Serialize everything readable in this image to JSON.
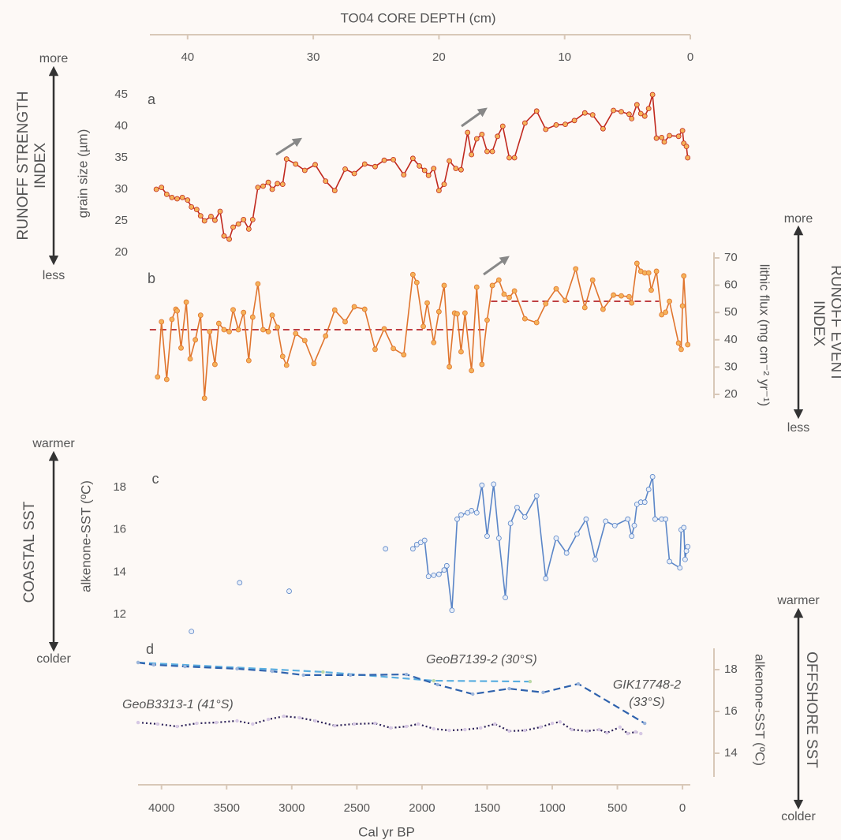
{
  "top_axis": {
    "label": "TO04 CORE DEPTH (cm)",
    "xlim": [
      43,
      0
    ],
    "xticks": [
      40,
      30,
      20,
      10,
      0
    ]
  },
  "bottom_axis": {
    "label": "Cal yr BP",
    "xlim": [
      4180,
      -60
    ],
    "xticks": [
      4000,
      3500,
      3000,
      2500,
      2000,
      1500,
      1000,
      500,
      0
    ]
  },
  "indices": [
    {
      "title": [
        "RUNOFF STRENGTH",
        "INDEX"
      ],
      "top": "more",
      "bottom": "less"
    },
    {
      "title": [
        "RUNOFF EVENT",
        "INDEX"
      ],
      "top": "more",
      "bottom": "less"
    },
    {
      "title": [
        "COASTAL SST"
      ],
      "top": "warmer",
      "bottom": "colder"
    },
    {
      "title": [
        "OFFSHORE SST"
      ],
      "top": "warmer",
      "bottom": "colder"
    }
  ],
  "chart_data": [
    {
      "type": "line",
      "label": "a",
      "ylabel": "grain size (µm)",
      "axis_side": "left",
      "ylim": [
        20,
        45
      ],
      "yticks": [
        20,
        25,
        30,
        35,
        40,
        45
      ],
      "color": "#c0281e",
      "marker_color": "#f5b25a",
      "x": [
        4040,
        4000,
        3960,
        3920,
        3880,
        3840,
        3800,
        3770,
        3730,
        3700,
        3670,
        3620,
        3590,
        3550,
        3520,
        3480,
        3450,
        3410,
        3370,
        3330,
        3300,
        3260,
        3220,
        3180,
        3150,
        3110,
        3070,
        3040,
        2970,
        2900,
        2820,
        2740,
        2670,
        2590,
        2520,
        2440,
        2360,
        2290,
        2220,
        2140,
        2070,
        2020,
        1980,
        1950,
        1910,
        1870,
        1830,
        1790,
        1740,
        1700,
        1650,
        1620,
        1580,
        1540,
        1500,
        1460,
        1420,
        1380,
        1330,
        1290,
        1210,
        1120,
        1050,
        970,
        900,
        830,
        750,
        690,
        610,
        530,
        470,
        410,
        390,
        350,
        320,
        290,
        260,
        230,
        200,
        160,
        140,
        100,
        30,
        0,
        -10,
        -30,
        -40
      ],
      "values": [
        30,
        30.3,
        29.2,
        28.7,
        28.5,
        28.7,
        28.3,
        27.2,
        26.8,
        25.8,
        25,
        25.7,
        25.1,
        26.5,
        22.6,
        22.1,
        24,
        24.5,
        25.2,
        23.7,
        25.2,
        30.3,
        30.5,
        31.1,
        30,
        30.9,
        30.8,
        34.8,
        34,
        33,
        33.9,
        31.3,
        29.8,
        33.2,
        32.5,
        34,
        33.6,
        34.6,
        34.7,
        32.3,
        34.9,
        33.7,
        33,
        32.2,
        33.3,
        29.8,
        30.8,
        34.5,
        33.3,
        33.1,
        39,
        35.5,
        38,
        38.7,
        36,
        36,
        38.4,
        40,
        35,
        35,
        40.5,
        42.4,
        39.5,
        40.2,
        40.3,
        40.9,
        42.1,
        41.8,
        39.6,
        42.5,
        42.3,
        41.9,
        41.2,
        43.4,
        42,
        41.6,
        42.8,
        45,
        38.1,
        38.2,
        37.5,
        38.5,
        38.4,
        39.3,
        37.3,
        36.8,
        35
      ]
    },
    {
      "type": "line",
      "label": "b",
      "ylabel": "lithic flux (mg cm⁻² yr⁻¹)",
      "axis_side": "right",
      "ylim": [
        20,
        70
      ],
      "yticks": [
        20,
        30,
        40,
        50,
        60,
        70
      ],
      "color": "#e0752e",
      "marker_color": "#f5b25a",
      "x": [
        4030,
        4000,
        3960,
        3920,
        3890,
        3880,
        3850,
        3810,
        3780,
        3740,
        3700,
        3670,
        3630,
        3590,
        3560,
        3520,
        3480,
        3450,
        3410,
        3370,
        3330,
        3300,
        3260,
        3220,
        3180,
        3150,
        3110,
        3070,
        3040,
        2970,
        2900,
        2830,
        2740,
        2670,
        2590,
        2520,
        2440,
        2360,
        2290,
        2220,
        2140,
        2070,
        2040,
        1990,
        1960,
        1910,
        1870,
        1830,
        1790,
        1750,
        1730,
        1700,
        1670,
        1620,
        1580,
        1540,
        1500,
        1460,
        1410,
        1370,
        1330,
        1290,
        1210,
        1120,
        1050,
        970,
        900,
        820,
        750,
        690,
        610,
        530,
        470,
        410,
        390,
        350,
        320,
        290,
        260,
        240,
        200,
        160,
        130,
        100,
        30,
        10,
        0,
        -10,
        -40
      ],
      "values": [
        26.4,
        46.6,
        25.5,
        47.5,
        51.2,
        50.6,
        37,
        53.8,
        33,
        40,
        49,
        18.6,
        43,
        31,
        46,
        43.7,
        43,
        51,
        43.7,
        50,
        32.4,
        48.3,
        60.5,
        43.7,
        43,
        49,
        44.6,
        33.9,
        30.7,
        42.3,
        39.7,
        31.3,
        41.4,
        50.9,
        46.6,
        52.1,
        51.2,
        36.5,
        44,
        36.8,
        34.5,
        63.9,
        61,
        44.9,
        53.5,
        39,
        50.3,
        59.9,
        30.1,
        49.8,
        49.5,
        35.6,
        49.8,
        28.7,
        59.3,
        31,
        47.2,
        59.9,
        61.9,
        56.7,
        55.5,
        57.9,
        47.7,
        46.3,
        53.2,
        58.7,
        54.4,
        66,
        51.8,
        61.9,
        51.2,
        56.4,
        56.1,
        55.8,
        53.5,
        68,
        65.1,
        64.5,
        64.5,
        58.2,
        65.1,
        49.2,
        50.1,
        54.1,
        38.8,
        36.5,
        52.4,
        63.4,
        38.2
      ],
      "reference_lines": [
        {
          "value": 43.7,
          "x": [
            4090,
            1520
          ],
          "color": "#b8262a"
        },
        {
          "value": 54.1,
          "x": [
            1470,
            180
          ],
          "color": "#b8262a"
        }
      ]
    },
    {
      "type": "line",
      "label": "c",
      "ylabel": "alkenone-SST (ºC)",
      "axis_side": "left",
      "ylim": [
        11,
        19
      ],
      "yticks": [
        12,
        14,
        16,
        18
      ],
      "series": [
        {
          "line": false,
          "color": "#5b86c8",
          "marker_color": "#e8eef8",
          "x": [
            3770,
            3400,
            3020,
            2280
          ],
          "values": [
            11.2,
            13.5,
            13.1,
            15.1
          ]
        },
        {
          "line": true,
          "color": "#5b86c8",
          "marker_color": "#e8eef8",
          "x": [
            2070,
            2040,
            2010,
            1980,
            1950,
            1910,
            1870,
            1830,
            1810,
            1770,
            1730,
            1700,
            1650,
            1620,
            1580,
            1540,
            1500,
            1450,
            1410,
            1360,
            1320,
            1270,
            1210,
            1120,
            1050,
            970,
            890,
            810,
            740,
            670,
            590,
            520,
            420,
            390,
            370,
            350,
            320,
            290,
            260,
            230,
            210,
            160,
            130,
            100,
            20,
            10,
            -10,
            -20,
            -30,
            -40
          ],
          "values": [
            15.1,
            15.3,
            15.4,
            15.5,
            13.8,
            13.85,
            13.9,
            14.1,
            14.3,
            12.2,
            16.5,
            16.7,
            16.8,
            16.9,
            16.8,
            18.1,
            15.7,
            18.15,
            15.6,
            12.8,
            16.3,
            17.05,
            16.6,
            17.6,
            13.7,
            15.6,
            14.9,
            15.8,
            16.5,
            14.6,
            16.4,
            16.2,
            16.5,
            15.7,
            16.2,
            17.2,
            17.3,
            17.3,
            17.9,
            18.5,
            16.5,
            16.5,
            16.5,
            14.5,
            14.2,
            16,
            16.1,
            14.6,
            15,
            15.2
          ]
        }
      ]
    },
    {
      "type": "line",
      "label": "d",
      "ylabel": "alkenone-SST (ºC)",
      "axis_side": "right",
      "ylim": [
        13,
        19
      ],
      "yticks": [
        14,
        16,
        18
      ],
      "series": [
        {
          "name": "GeoB7139-2 (30°S)",
          "dash": "dashed",
          "color": "#5aaee0",
          "marker_color": "#bcd9a8",
          "x": [
            4180,
            2760,
            1910,
            1170
          ],
          "values": [
            18.34,
            17.89,
            17.47,
            17.43
          ]
        },
        {
          "name": "GIK17748-2 (33°S)",
          "dash": "dashed",
          "color": "#2f62ad",
          "marker_color": "#9db6dc",
          "x": [
            4180,
            4060,
            3820,
            3420,
            3150,
            2910,
            2550,
            2120,
            1880,
            1610,
            1330,
            1070,
            800,
            290
          ],
          "values": [
            18.34,
            18.23,
            18.15,
            18.04,
            17.92,
            17.74,
            17.74,
            17.77,
            17.28,
            16.83,
            17.09,
            16.91,
            17.32,
            15.43
          ]
        },
        {
          "name": "GeoB3313-1 (41°S)",
          "dash": "dotted",
          "color": "#2b2057",
          "marker_color": "#d6c8e4",
          "x": [
            4180,
            4030,
            3880,
            3730,
            3580,
            3420,
            3300,
            3180,
            3060,
            2940,
            2820,
            2670,
            2520,
            2360,
            2240,
            2120,
            2030,
            1910,
            1790,
            1670,
            1550,
            1440,
            1330,
            1210,
            1090,
            1000,
            940,
            850,
            730,
            640,
            580,
            480,
            420,
            360,
            320
          ],
          "values": [
            15.47,
            15.4,
            15.28,
            15.43,
            15.47,
            15.55,
            15.4,
            15.62,
            15.77,
            15.7,
            15.55,
            15.32,
            15.4,
            15.43,
            15.21,
            15.28,
            15.4,
            15.17,
            15.09,
            15.13,
            15.21,
            15.4,
            15.06,
            15.09,
            15.25,
            15.43,
            15.5,
            15.13,
            15.06,
            15.13,
            14.98,
            15.25,
            14.94,
            15.02,
            14.94
          ]
        }
      ]
    }
  ]
}
